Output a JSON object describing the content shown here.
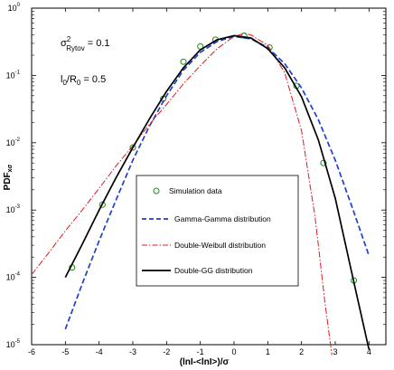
{
  "chart_data": {
    "type": "line",
    "title": "",
    "xlabel": "(lnI-<lnI>)/σ",
    "ylabel": "PDF",
    "ylabel_sub": "xσ",
    "xlim": [
      -6,
      4.5
    ],
    "ylim": [
      1e-05,
      1
    ],
    "yscale": "log",
    "x_ticks": [
      -6,
      -5,
      -4,
      -3,
      -2,
      -1,
      0,
      1,
      2,
      3,
      4
    ],
    "y_ticks": [
      {
        "value": 1,
        "base": "10",
        "exp": "0"
      },
      {
        "value": 0.1,
        "base": "10",
        "exp": "-1"
      },
      {
        "value": 0.01,
        "base": "10",
        "exp": "-2"
      },
      {
        "value": 0.001,
        "base": "10",
        "exp": "-3"
      },
      {
        "value": 0.0001,
        "base": "10",
        "exp": "-4"
      },
      {
        "value": 1e-05,
        "base": "10",
        "exp": "-5"
      }
    ],
    "grid": false,
    "legend_position": "center",
    "annotations": [
      {
        "base": "σ",
        "sup": "2",
        "sub": "Rytov",
        "rest": " = 0.1"
      },
      {
        "base": "l",
        "sub": "0",
        "rest": "/R",
        "sub2": "0",
        "rest2": " = 0.5"
      }
    ],
    "series": [
      {
        "name": "Simulation data",
        "style": "markers",
        "color": "#1a8a1a",
        "x": [
          -4.8,
          -3.9,
          -3.0,
          -2.1,
          -1.5,
          -1.0,
          -0.55,
          0.3,
          1.05,
          1.85,
          2.65,
          3.55
        ],
        "y": [
          0.00014,
          0.0012,
          0.0085,
          0.045,
          0.16,
          0.27,
          0.34,
          0.39,
          0.26,
          0.07,
          0.005,
          9e-05
        ]
      },
      {
        "name": "Gamma-Gamma distribution",
        "style": "dashed",
        "color": "#1f3fd1",
        "x": [
          -5.0,
          -4.5,
          -4.0,
          -3.5,
          -3.0,
          -2.5,
          -2.0,
          -1.5,
          -1.0,
          -0.5,
          0.0,
          0.5,
          1.0,
          1.5,
          2.0,
          2.5,
          3.0,
          3.5,
          4.0
        ],
        "y": [
          1.7e-05,
          8e-05,
          0.00035,
          0.0014,
          0.0055,
          0.018,
          0.05,
          0.12,
          0.22,
          0.32,
          0.38,
          0.35,
          0.26,
          0.15,
          0.065,
          0.022,
          0.0055,
          0.0011,
          0.00021
        ]
      },
      {
        "name": "Double-Weibull distribution",
        "style": "dashdot",
        "color": "#e41a1a",
        "x": [
          -6.0,
          -5.5,
          -5.0,
          -4.5,
          -4.0,
          -3.5,
          -3.0,
          -2.5,
          -2.0,
          -1.5,
          -1.0,
          -0.5,
          0.0,
          0.3,
          0.5,
          1.0,
          1.5,
          2.0,
          2.4,
          2.7,
          2.9
        ],
        "y": [
          0.00011,
          0.00023,
          0.00049,
          0.001,
          0.0021,
          0.0045,
          0.009,
          0.019,
          0.037,
          0.075,
          0.14,
          0.25,
          0.38,
          0.42,
          0.4,
          0.28,
          0.11,
          0.015,
          0.0008,
          4e-05,
          7e-06
        ]
      },
      {
        "name": "Double-GG distribution",
        "style": "solid",
        "color": "#000000",
        "x": [
          -5.0,
          -4.5,
          -4.0,
          -3.5,
          -3.0,
          -2.5,
          -2.0,
          -1.5,
          -1.0,
          -0.5,
          0.0,
          0.5,
          1.0,
          1.5,
          2.0,
          2.5,
          3.0,
          3.5,
          4.0
        ],
        "y": [
          0.0001,
          0.00031,
          0.001,
          0.003,
          0.0085,
          0.023,
          0.058,
          0.13,
          0.24,
          0.34,
          0.39,
          0.36,
          0.25,
          0.13,
          0.048,
          0.011,
          0.0015,
          0.00011,
          8.5e-06
        ]
      }
    ]
  }
}
